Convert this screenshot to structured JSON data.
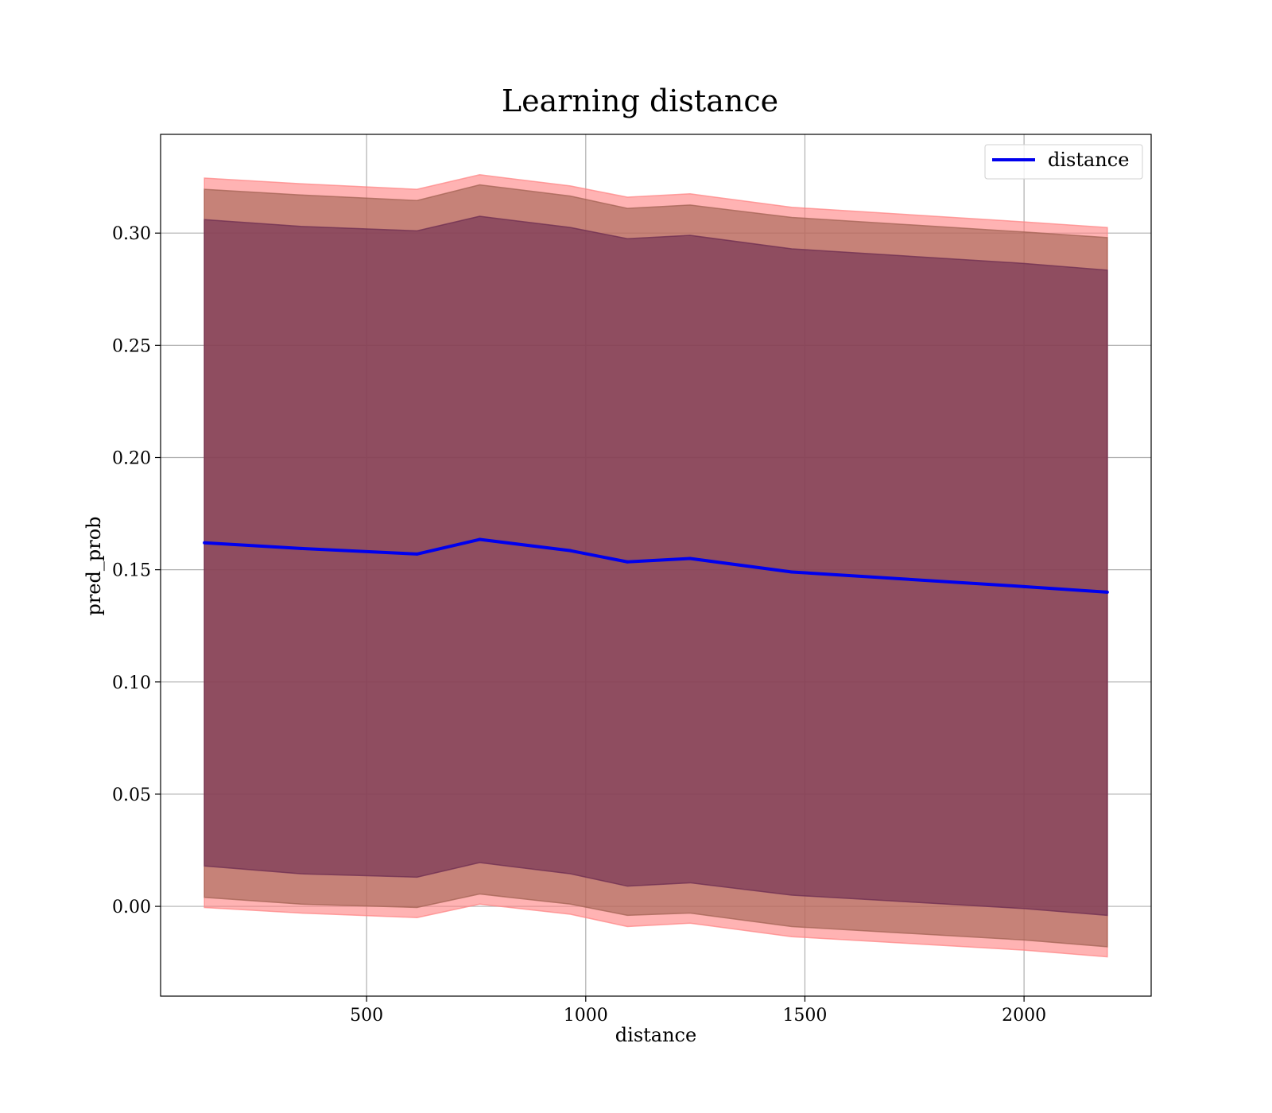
{
  "chart_data": {
    "type": "area",
    "title": "Learning distance",
    "xlabel": "distance",
    "ylabel": "pred_prob",
    "xlim": [
      30,
      2290
    ],
    "ylim": [
      -0.04,
      0.344
    ],
    "xticks": [
      500,
      1000,
      1500,
      2000
    ],
    "yticks": [
      0.0,
      0.05,
      0.1,
      0.15,
      0.2,
      0.25,
      0.3
    ],
    "xtick_labels": [
      "500",
      "1000",
      "1500",
      "2000"
    ],
    "ytick_labels": [
      "0.00",
      "0.05",
      "0.10",
      "0.15",
      "0.20",
      "0.25",
      "0.30"
    ],
    "grid": true,
    "legend_position": "top-right",
    "x": [
      130,
      350,
      615,
      758,
      965,
      1095,
      1238,
      1470,
      2000,
      2190
    ],
    "series": [
      {
        "name": "distance",
        "color": "#0000ee",
        "values": [
          0.162,
          0.1595,
          0.157,
          0.1635,
          0.1585,
          0.1535,
          0.155,
          0.149,
          0.1425,
          0.14
        ]
      }
    ],
    "bands": [
      {
        "color": "#ff8080",
        "lower": [
          -0.0005,
          -0.003,
          -0.005,
          0.001,
          -0.0035,
          -0.009,
          -0.0075,
          -0.0135,
          -0.0195,
          -0.0225
        ],
        "upper": [
          0.3245,
          0.322,
          0.3195,
          0.326,
          0.321,
          0.316,
          0.3175,
          0.3115,
          0.305,
          0.3025
        ]
      },
      {
        "color": "#a06050",
        "lower": [
          0.004,
          0.001,
          -0.0005,
          0.0055,
          0.001,
          -0.004,
          -0.003,
          -0.009,
          -0.015,
          -0.018
        ],
        "upper": [
          0.3195,
          0.317,
          0.3145,
          0.3215,
          0.3165,
          0.311,
          0.3125,
          0.307,
          0.3005,
          0.298
        ]
      },
      {
        "color": "#6a2a50",
        "lower": [
          0.018,
          0.0145,
          0.013,
          0.0195,
          0.0145,
          0.009,
          0.0105,
          0.005,
          -0.001,
          -0.004
        ],
        "upper": [
          0.306,
          0.303,
          0.301,
          0.3075,
          0.3025,
          0.2975,
          0.299,
          0.293,
          0.2865,
          0.2835
        ]
      }
    ]
  }
}
